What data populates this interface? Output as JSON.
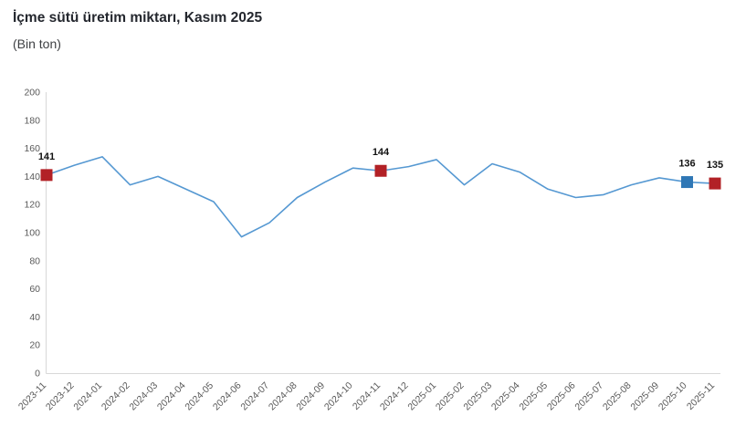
{
  "chart_data": {
    "type": "line",
    "title": "İçme sütü üretim miktarı, Kasım 2025",
    "subtitle": "(Bin ton)",
    "x": [
      "2023-11",
      "2023-12",
      "2024-01",
      "2024-02",
      "2024-03",
      "2024-04",
      "2024-05",
      "2024-06",
      "2024-07",
      "2024-08",
      "2024-09",
      "2024-10",
      "2024-11",
      "2024-12",
      "2025-01",
      "2025-02",
      "2025-03",
      "2025-04",
      "2025-05",
      "2025-06",
      "2025-07",
      "2025-08",
      "2025-09",
      "2025-10",
      "2025-11"
    ],
    "values": [
      141,
      148,
      154,
      134,
      140,
      131,
      122,
      97,
      107,
      125,
      136,
      146,
      144,
      147,
      152,
      134,
      149,
      143,
      131,
      125,
      127,
      134,
      139,
      136,
      135
    ],
    "ylim": [
      0,
      200
    ],
    "ytick_step": 20,
    "grid": false,
    "legend": "none",
    "line_color": "#5598d2",
    "axis_color": "#d8d8d8",
    "annotated_points": [
      {
        "x": "2023-11",
        "value": 141,
        "marker_color": "#b22126"
      },
      {
        "x": "2024-11",
        "value": 144,
        "marker_color": "#b22126"
      },
      {
        "x": "2025-10",
        "value": 136,
        "marker_color": "#2f77b5"
      },
      {
        "x": "2025-11",
        "value": 135,
        "marker_color": "#b22126"
      }
    ]
  }
}
